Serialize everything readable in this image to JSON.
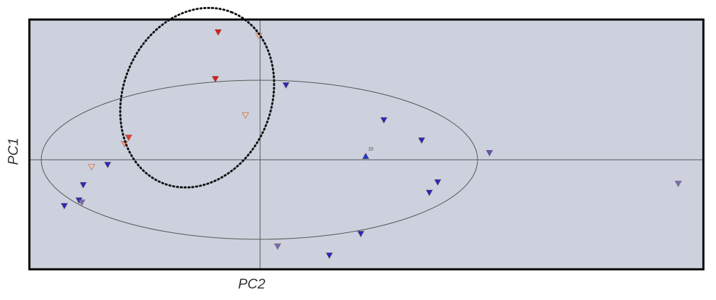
{
  "chart_data": {
    "type": "scatter",
    "x_label": "PC2",
    "y_label": "PC1",
    "xlim": [
      -3.3,
      6.34
    ],
    "ylim": [
      -1.57,
      2.01
    ],
    "x": [
      -0.6,
      -0.02,
      -0.64,
      0.37,
      -0.21,
      1.77,
      -1.88,
      -1.94,
      2.31,
      3.28,
      -2.41,
      -2.18,
      1.51,
      -2.53,
      2.54,
      2.42,
      5.98,
      -2.59,
      -2.55,
      -2.8,
      1.44,
      0.25,
      0.99
    ],
    "y": [
      1.83,
      1.78,
      1.16,
      1.07,
      0.64,
      0.57,
      0.32,
      0.23,
      0.28,
      0.1,
      -0.1,
      -0.07,
      0.05,
      -0.36,
      -0.32,
      -0.47,
      -0.34,
      -0.58,
      -0.61,
      -0.66,
      -1.06,
      -1.24,
      -1.37
    ],
    "colors": [
      "#d42020",
      "#f4c8b0",
      "#d42020",
      "#2828c0",
      "#f4c8b0",
      "#2828c0",
      "#e04030",
      "#f0a080",
      "#2828c0",
      "#5858b8",
      "#f4c8b0",
      "#2828c0",
      "#1a3ad0",
      "#2828c0",
      "#2828c0",
      "#2828c0",
      "#7070c0",
      "#2828c0",
      "#7070c0",
      "#2828c0",
      "#2828c0",
      "#7070c0",
      "#2828c0"
    ],
    "markers": [
      "down",
      "down",
      "down",
      "down",
      "down",
      "down",
      "down",
      "down",
      "down",
      "down",
      "down",
      "down",
      "up",
      "down",
      "down",
      "down",
      "down",
      "down",
      "down",
      "down",
      "down",
      "down",
      "down"
    ],
    "annotations": [
      {
        "text": "23"
      }
    ],
    "background": "#ccd1dd"
  }
}
